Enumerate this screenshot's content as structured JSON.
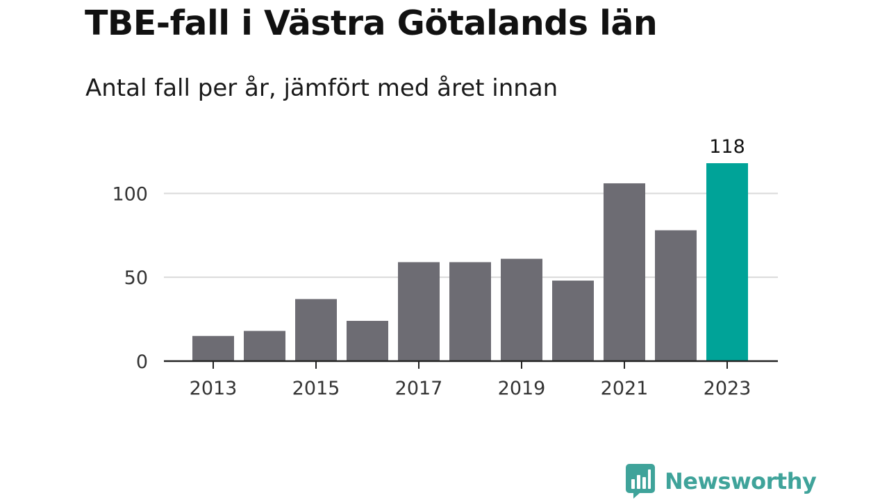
{
  "header": {
    "title": "TBE-fall i Västra Götalands län",
    "subtitle": "Antal fall per år, jämfört med året innan"
  },
  "brand": {
    "name": "Newsworthy",
    "icon": "newsworthy-bar-chart-icon",
    "color": "#3fa39a"
  },
  "colors": {
    "bar": "#6d6c73",
    "highlight": "#00a398",
    "grid": "#d9d9d9",
    "axis": "#222222"
  },
  "chart_data": {
    "type": "bar",
    "title": "TBE-fall i Västra Götalands län",
    "subtitle": "Antal fall per år, jämfört med året innan",
    "xlabel": "",
    "ylabel": "",
    "categories": [
      2013,
      2014,
      2015,
      2016,
      2017,
      2018,
      2019,
      2020,
      2021,
      2022,
      2023
    ],
    "values": [
      15,
      18,
      37,
      24,
      59,
      59,
      61,
      48,
      106,
      78,
      118
    ],
    "highlight_index": 10,
    "data_labels": [
      {
        "index": 10,
        "text": "118"
      }
    ],
    "ylim": [
      0,
      118
    ],
    "y_ticks": [
      {
        "value": 0,
        "label": "0"
      },
      {
        "value": 50,
        "label": "50"
      },
      {
        "value": 100,
        "label": "100"
      }
    ],
    "x_ticks": [
      {
        "value": 2013,
        "label": "2013"
      },
      {
        "value": 2015,
        "label": "2015"
      },
      {
        "value": 2017,
        "label": "2017"
      },
      {
        "value": 2019,
        "label": "2019"
      },
      {
        "value": 2021,
        "label": "2021"
      },
      {
        "value": 2023,
        "label": "2023"
      }
    ],
    "grid": true,
    "legend": "none"
  }
}
